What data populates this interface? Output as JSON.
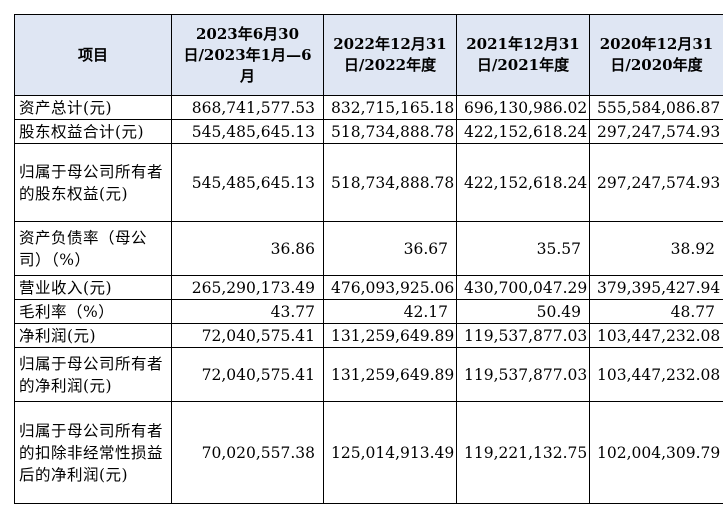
{
  "table": {
    "header": {
      "item": "项目",
      "periods": [
        "2023年6月30日/2023年1月—6月",
        "2022年12月31日/2022年度",
        "2021年12月31日/2021年度",
        "2020年12月31日/2020年度"
      ]
    },
    "rows": [
      {
        "label": "资产总计(元)",
        "values": [
          "868,741,577.53",
          "832,715,165.18",
          "696,130,986.02",
          "555,584,086.87"
        ]
      },
      {
        "label": "股东权益合计(元)",
        "values": [
          "545,485,645.13",
          "518,734,888.78",
          "422,152,618.24",
          "297,247,574.93"
        ]
      },
      {
        "label": "归属于母公司所有者的股东权益(元)",
        "values": [
          "545,485,645.13",
          "518,734,888.78",
          "422,152,618.24",
          "297,247,574.93"
        ]
      },
      {
        "label": "资产负债率（母公司）（%）",
        "values": [
          "36.86",
          "36.67",
          "35.57",
          "38.92"
        ]
      },
      {
        "label": "营业收入(元)",
        "values": [
          "265,290,173.49",
          "476,093,925.06",
          "430,700,047.29",
          "379,395,427.94"
        ]
      },
      {
        "label": "毛利率（%）",
        "values": [
          "43.77",
          "42.17",
          "50.49",
          "48.77"
        ]
      },
      {
        "label": "净利润(元)",
        "values": [
          "72,040,575.41",
          "131,259,649.89",
          "119,537,877.03",
          "103,447,232.08"
        ]
      },
      {
        "label": "归属于母公司所有者的净利润(元)",
        "values": [
          "72,040,575.41",
          "131,259,649.89",
          "119,537,877.03",
          "103,447,232.08"
        ]
      },
      {
        "label": "归属于母公司所有者的扣除非经常性损益后的净利润(元)",
        "values": [
          "70,020,557.38",
          "125,014,913.49",
          "119,221,132.75",
          "102,004,309.79"
        ]
      }
    ]
  }
}
